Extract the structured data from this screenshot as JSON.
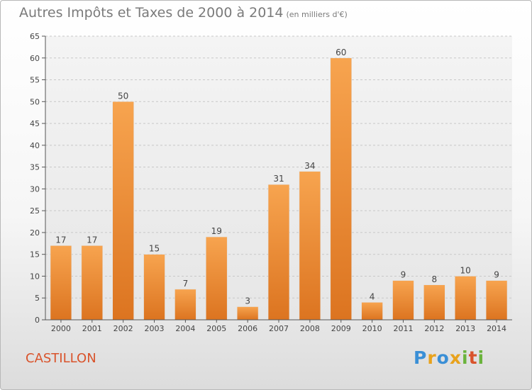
{
  "title": {
    "main": "Autres Impôts et Taxes de 2000 à 2014",
    "unit": "(en milliers d'€)"
  },
  "location": "CASTILLON",
  "logo": {
    "letters": [
      "P",
      "r",
      "o",
      "x",
      "i",
      "t",
      "i"
    ],
    "colors": [
      "#3a8fd6",
      "#e8a21c",
      "#3a8fd6",
      "#e8a21c",
      "#6ab33c",
      "#d9532b",
      "#6ab33c"
    ]
  },
  "chart_data": {
    "type": "bar",
    "categories": [
      "2000",
      "2001",
      "2002",
      "2003",
      "2004",
      "2005",
      "2006",
      "2007",
      "2008",
      "2009",
      "2010",
      "2011",
      "2012",
      "2013",
      "2014"
    ],
    "values": [
      17,
      17,
      50,
      15,
      7,
      19,
      3,
      31,
      34,
      60,
      4,
      9,
      8,
      10,
      9
    ],
    "title": "Autres Impôts et Taxes de 2000 à 2014",
    "xlabel": "",
    "ylabel": "",
    "ylim": [
      0,
      65
    ],
    "yticks": [
      0,
      5,
      10,
      15,
      20,
      25,
      30,
      35,
      40,
      45,
      50,
      55,
      60,
      65
    ],
    "grid": true,
    "bar_color": "#f08b2a"
  }
}
